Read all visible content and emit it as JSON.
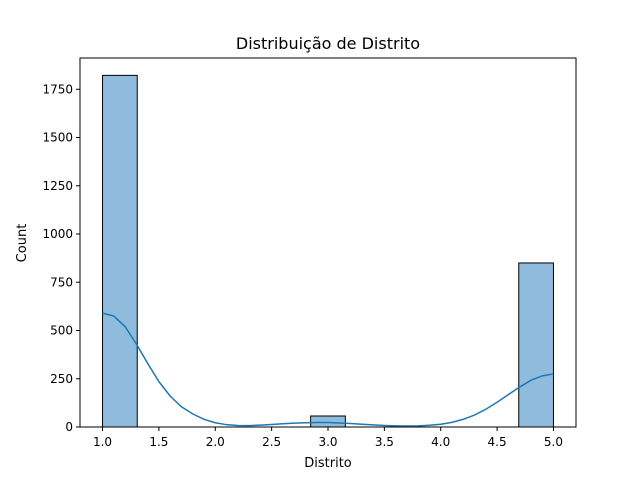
{
  "chart_data": {
    "type": "histogram",
    "title": "Distribuição de Distrito",
    "xlabel": "Distrito",
    "ylabel": "Count",
    "xlim": [
      0.8,
      5.2
    ],
    "ylim": [
      0,
      1912
    ],
    "x_ticks": [
      1.0,
      1.5,
      2.0,
      2.5,
      3.0,
      3.5,
      4.0,
      4.5,
      5.0
    ],
    "x_tick_labels": [
      "1.0",
      "1.5",
      "2.0",
      "2.5",
      "3.0",
      "3.5",
      "4.0",
      "4.5",
      "5.0"
    ],
    "y_ticks": [
      0,
      250,
      500,
      750,
      1000,
      1250,
      1500,
      1750
    ],
    "y_tick_labels": [
      "0",
      "250",
      "500",
      "750",
      "1000",
      "1250",
      "1500",
      "1750"
    ],
    "bins": [
      {
        "x0": 1.0,
        "x1": 1.3077,
        "count": 1822
      },
      {
        "x0": 1.3077,
        "x1": 1.6154,
        "count": 0
      },
      {
        "x0": 1.6154,
        "x1": 1.9231,
        "count": 0
      },
      {
        "x0": 1.9231,
        "x1": 2.2308,
        "count": 0
      },
      {
        "x0": 2.2308,
        "x1": 2.5385,
        "count": 0
      },
      {
        "x0": 2.5385,
        "x1": 2.8462,
        "count": 0
      },
      {
        "x0": 2.8462,
        "x1": 3.1538,
        "count": 57
      },
      {
        "x0": 3.1538,
        "x1": 3.4615,
        "count": 0
      },
      {
        "x0": 3.4615,
        "x1": 3.7692,
        "count": 0
      },
      {
        "x0": 3.7692,
        "x1": 4.0769,
        "count": 0
      },
      {
        "x0": 4.0769,
        "x1": 4.3846,
        "count": 0
      },
      {
        "x0": 4.3846,
        "x1": 4.6923,
        "count": 0
      },
      {
        "x0": 4.6923,
        "x1": 5.0,
        "count": 850
      }
    ],
    "kde": {
      "x": [
        1.0,
        1.1,
        1.2,
        1.3,
        1.4,
        1.5,
        1.6,
        1.7,
        1.8,
        1.9,
        2.0,
        2.1,
        2.2,
        2.3,
        2.4,
        2.5,
        2.6,
        2.7,
        2.8,
        2.9,
        3.0,
        3.1,
        3.2,
        3.3,
        3.4,
        3.5,
        3.6,
        3.7,
        3.8,
        3.9,
        4.0,
        4.1,
        4.2,
        4.3,
        4.4,
        4.5,
        4.6,
        4.7,
        4.8,
        4.9,
        5.0
      ],
      "y": [
        590,
        575,
        520,
        430,
        330,
        235,
        160,
        105,
        68,
        40,
        22,
        12,
        8,
        7,
        10,
        13,
        17,
        20,
        22,
        23,
        23,
        21,
        18,
        14,
        11,
        8,
        6,
        5,
        6,
        9,
        14,
        24,
        40,
        62,
        92,
        128,
        168,
        207,
        242,
        265,
        275
      ]
    },
    "colors": {
      "bar_fill": "#8fbcdd",
      "bar_edge": "#000000",
      "kde_line": "#1f77b4"
    },
    "grid": false
  }
}
